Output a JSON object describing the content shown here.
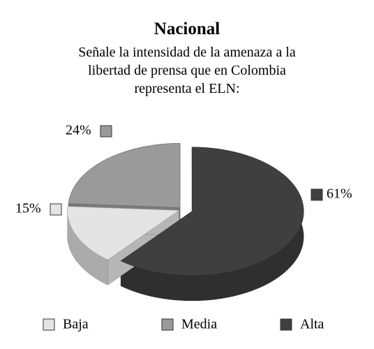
{
  "chart_data": {
    "type": "pie3d",
    "title": "Nacional",
    "subtitle": "Señale la intensidad de la amenaza a la libertad de prensa que en Colombia representa el ELN:",
    "series": [
      {
        "name": "Baja",
        "color": "#e4e4e4",
        "values": [
          15
        ],
        "value_labels": [
          "15%"
        ]
      },
      {
        "name": "Media",
        "color": "#9a9a9a",
        "values": [
          24
        ],
        "value_labels": [
          "24%"
        ]
      },
      {
        "name": "Alta",
        "color": "#3f3f3f",
        "values": [
          61
        ],
        "value_labels": [
          "61%"
        ]
      }
    ],
    "legend": "bottom"
  }
}
